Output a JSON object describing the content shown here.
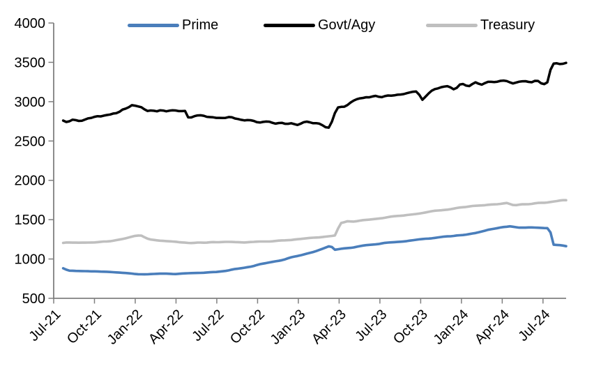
{
  "chart_data": {
    "type": "line",
    "title": "",
    "xlabel": "",
    "ylabel": "",
    "grid": false,
    "legend_position": "top",
    "ylim": [
      500,
      4000
    ],
    "y_ticks": [
      4000,
      3500,
      3000,
      2500,
      2000,
      1500,
      1000,
      500
    ],
    "x_tick_labels": [
      "Jul-21",
      "Oct-21",
      "Jan-22",
      "Apr-22",
      "Jul-22",
      "Oct-22",
      "Jan-23",
      "Apr-23",
      "Jul-23",
      "Oct-23",
      "Jan-24",
      "Apr-24",
      "Jul-24"
    ],
    "x_months_per_tick": 3,
    "x_axis_months_span": 37.7,
    "axis_color": "#7f7f7f",
    "text_color": "#000000",
    "series": [
      {
        "name": "Prime",
        "color": "#4a7ebb",
        "points_t_months_vs_value": [
          [
            0.7,
            880
          ],
          [
            1.1,
            852
          ],
          [
            2,
            847
          ],
          [
            3,
            843
          ],
          [
            4,
            838
          ],
          [
            5,
            824
          ],
          [
            6,
            812
          ],
          [
            7,
            808
          ],
          [
            8,
            814
          ],
          [
            9,
            808
          ],
          [
            10,
            816
          ],
          [
            11,
            824
          ],
          [
            12,
            836
          ],
          [
            13,
            862
          ],
          [
            14,
            888
          ],
          [
            15,
            925
          ],
          [
            16,
            958
          ],
          [
            17,
            995
          ],
          [
            18,
            1040
          ],
          [
            19,
            1085
          ],
          [
            19.9,
            1140
          ],
          [
            20.35,
            1170
          ],
          [
            20.7,
            1115
          ],
          [
            21,
            1125
          ],
          [
            22,
            1148
          ],
          [
            23,
            1172
          ],
          [
            24,
            1195
          ],
          [
            25,
            1213
          ],
          [
            26,
            1230
          ],
          [
            27,
            1250
          ],
          [
            28,
            1268
          ],
          [
            29,
            1288
          ],
          [
            30,
            1303
          ],
          [
            31,
            1332
          ],
          [
            32,
            1372
          ],
          [
            33,
            1402
          ],
          [
            33.6,
            1415
          ],
          [
            34.2,
            1396
          ],
          [
            35,
            1402
          ],
          [
            36,
            1390
          ],
          [
            36.5,
            1393
          ],
          [
            36.7,
            1183
          ],
          [
            37.2,
            1178
          ],
          [
            37.7,
            1165
          ]
        ]
      },
      {
        "name": "Govt/Agy",
        "color": "#000000",
        "points_t_months_vs_value": [
          [
            0.7,
            2760
          ],
          [
            1,
            2748
          ],
          [
            1.5,
            2772
          ],
          [
            2,
            2760
          ],
          [
            2.5,
            2790
          ],
          [
            3,
            2800
          ],
          [
            4,
            2832
          ],
          [
            5,
            2890
          ],
          [
            5.7,
            2945
          ],
          [
            6.3,
            2935
          ],
          [
            7,
            2880
          ],
          [
            7.5,
            2855
          ],
          [
            8,
            2885
          ],
          [
            8.7,
            2875
          ],
          [
            9.3,
            2890
          ],
          [
            9.7,
            2870
          ],
          [
            9.9,
            2790
          ],
          [
            10.4,
            2810
          ],
          [
            11,
            2818
          ],
          [
            11.5,
            2800
          ],
          [
            12,
            2808
          ],
          [
            13,
            2792
          ],
          [
            14,
            2772
          ],
          [
            15,
            2752
          ],
          [
            16,
            2738
          ],
          [
            17,
            2718
          ],
          [
            18,
            2712
          ],
          [
            18.5,
            2740
          ],
          [
            19,
            2728
          ],
          [
            19.7,
            2705
          ],
          [
            20.2,
            2658
          ],
          [
            20.5,
            2750
          ],
          [
            20.8,
            2905
          ],
          [
            21,
            2940
          ],
          [
            21.5,
            2955
          ],
          [
            22,
            3010
          ],
          [
            22.5,
            3045
          ],
          [
            23,
            3060
          ],
          [
            24,
            3062
          ],
          [
            25,
            3082
          ],
          [
            26,
            3102
          ],
          [
            26.8,
            3118
          ],
          [
            27.1,
            3028
          ],
          [
            27.7,
            3135
          ],
          [
            28,
            3168
          ],
          [
            29,
            3188
          ],
          [
            29.5,
            3150
          ],
          [
            30,
            3225
          ],
          [
            30.5,
            3180
          ],
          [
            31,
            3252
          ],
          [
            31.5,
            3225
          ],
          [
            32,
            3262
          ],
          [
            32.5,
            3240
          ],
          [
            33,
            3295
          ],
          [
            33.4,
            3270
          ],
          [
            33.7,
            3225
          ],
          [
            34,
            3240
          ],
          [
            34.5,
            3255
          ],
          [
            35,
            3250
          ],
          [
            35.5,
            3270
          ],
          [
            36,
            3238
          ],
          [
            36.3,
            3250
          ],
          [
            36.45,
            3255
          ],
          [
            36.6,
            3470
          ],
          [
            36.9,
            3485
          ],
          [
            37.2,
            3480
          ],
          [
            37.7,
            3515
          ]
        ]
      },
      {
        "name": "Treasury",
        "color": "#bfbfbf",
        "points_t_months_vs_value": [
          [
            0.7,
            1205
          ],
          [
            1,
            1210
          ],
          [
            2,
            1209
          ],
          [
            3,
            1214
          ],
          [
            4,
            1226
          ],
          [
            5,
            1252
          ],
          [
            6,
            1292
          ],
          [
            6.4,
            1300
          ],
          [
            7,
            1252
          ],
          [
            8,
            1234
          ],
          [
            9,
            1220
          ],
          [
            10,
            1205
          ],
          [
            11,
            1209
          ],
          [
            12,
            1213
          ],
          [
            13,
            1219
          ],
          [
            14,
            1213
          ],
          [
            15,
            1219
          ],
          [
            16,
            1225
          ],
          [
            17,
            1235
          ],
          [
            18,
            1254
          ],
          [
            19,
            1268
          ],
          [
            20,
            1285
          ],
          [
            20.7,
            1298
          ],
          [
            21.1,
            1452
          ],
          [
            21.6,
            1480
          ],
          [
            22,
            1476
          ],
          [
            23,
            1496
          ],
          [
            24,
            1518
          ],
          [
            25,
            1538
          ],
          [
            26,
            1560
          ],
          [
            27,
            1580
          ],
          [
            28,
            1610
          ],
          [
            29,
            1632
          ],
          [
            30,
            1658
          ],
          [
            31,
            1674
          ],
          [
            32,
            1688
          ],
          [
            33,
            1706
          ],
          [
            33.3,
            1718
          ],
          [
            33.9,
            1680
          ],
          [
            34.5,
            1694
          ],
          [
            35,
            1700
          ],
          [
            36,
            1714
          ],
          [
            37,
            1733
          ],
          [
            37.7,
            1752
          ]
        ]
      }
    ]
  }
}
